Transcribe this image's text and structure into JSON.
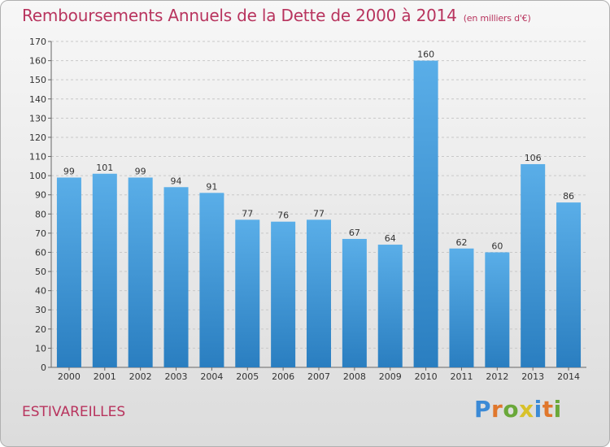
{
  "header": {
    "title": "Remboursements Annuels de la Dette de 2000 à 2014",
    "unit": "(en milliers d'€)"
  },
  "footer": {
    "commune": "ESTIVAREILLES",
    "logo": "Proxiti"
  },
  "colors": {
    "title": "#b8345e",
    "bar_top": "#5aaee8",
    "bar_bottom": "#2a7ec0"
  },
  "chart_data": {
    "type": "bar",
    "title": "Remboursements Annuels de la Dette de 2000 à 2014",
    "xlabel": "",
    "ylabel": "(en milliers d'€)",
    "categories": [
      "2000",
      "2001",
      "2002",
      "2003",
      "2004",
      "2005",
      "2006",
      "2007",
      "2008",
      "2009",
      "2010",
      "2011",
      "2012",
      "2013",
      "2014"
    ],
    "values": [
      99,
      101,
      99,
      94,
      91,
      77,
      76,
      77,
      67,
      64,
      160,
      62,
      60,
      106,
      86
    ],
    "ylim": [
      0,
      170
    ],
    "yticks": [
      0,
      10,
      20,
      30,
      40,
      50,
      60,
      70,
      80,
      90,
      100,
      110,
      120,
      130,
      140,
      150,
      160,
      170
    ],
    "grid": true
  }
}
